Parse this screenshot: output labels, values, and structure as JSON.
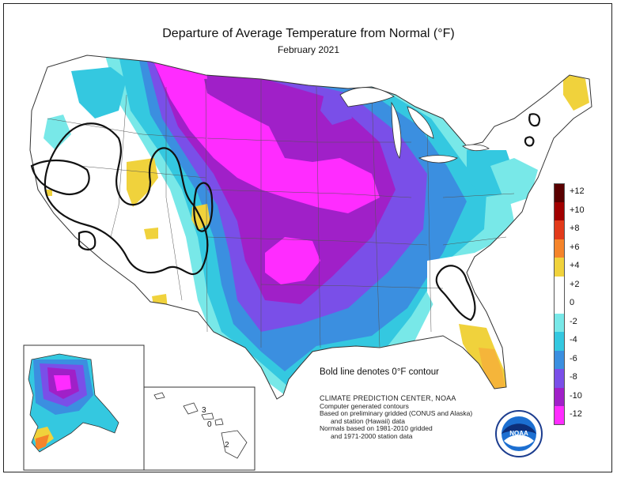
{
  "title": "Departure of Average Temperature from Normal (°F)",
  "subtitle": "February 2021",
  "legend": {
    "labels": [
      "+12",
      "+10",
      "+8",
      "+6",
      "+4",
      "+2",
      "0",
      "-2",
      "-4",
      "-6",
      "-8",
      "-10",
      "-12"
    ],
    "colors": [
      "#5a0000",
      "#a10000",
      "#e23a1a",
      "#f5842a",
      "#f0d23c",
      "#ffffff",
      "#ffffff",
      "#78e8e8",
      "#34c8e0",
      "#3b8fe0",
      "#7a4fe8",
      "#a020c8",
      "#ff2cff"
    ]
  },
  "contour_note": "Bold line denotes 0°F contour",
  "credits": {
    "heading": "CLIMATE PREDICTION CENTER, NOAA",
    "lines": [
      "Computer generated contours",
      "Based on preliminary gridded (CONUS and Alaska)",
      "and station (Hawaii) data",
      "Normals based on 1981-2010 gridded",
      "and 1971-2000 station data"
    ]
  },
  "hawaii_labels": [
    "3",
    "0",
    "2"
  ],
  "logo_text": "NOAA"
}
